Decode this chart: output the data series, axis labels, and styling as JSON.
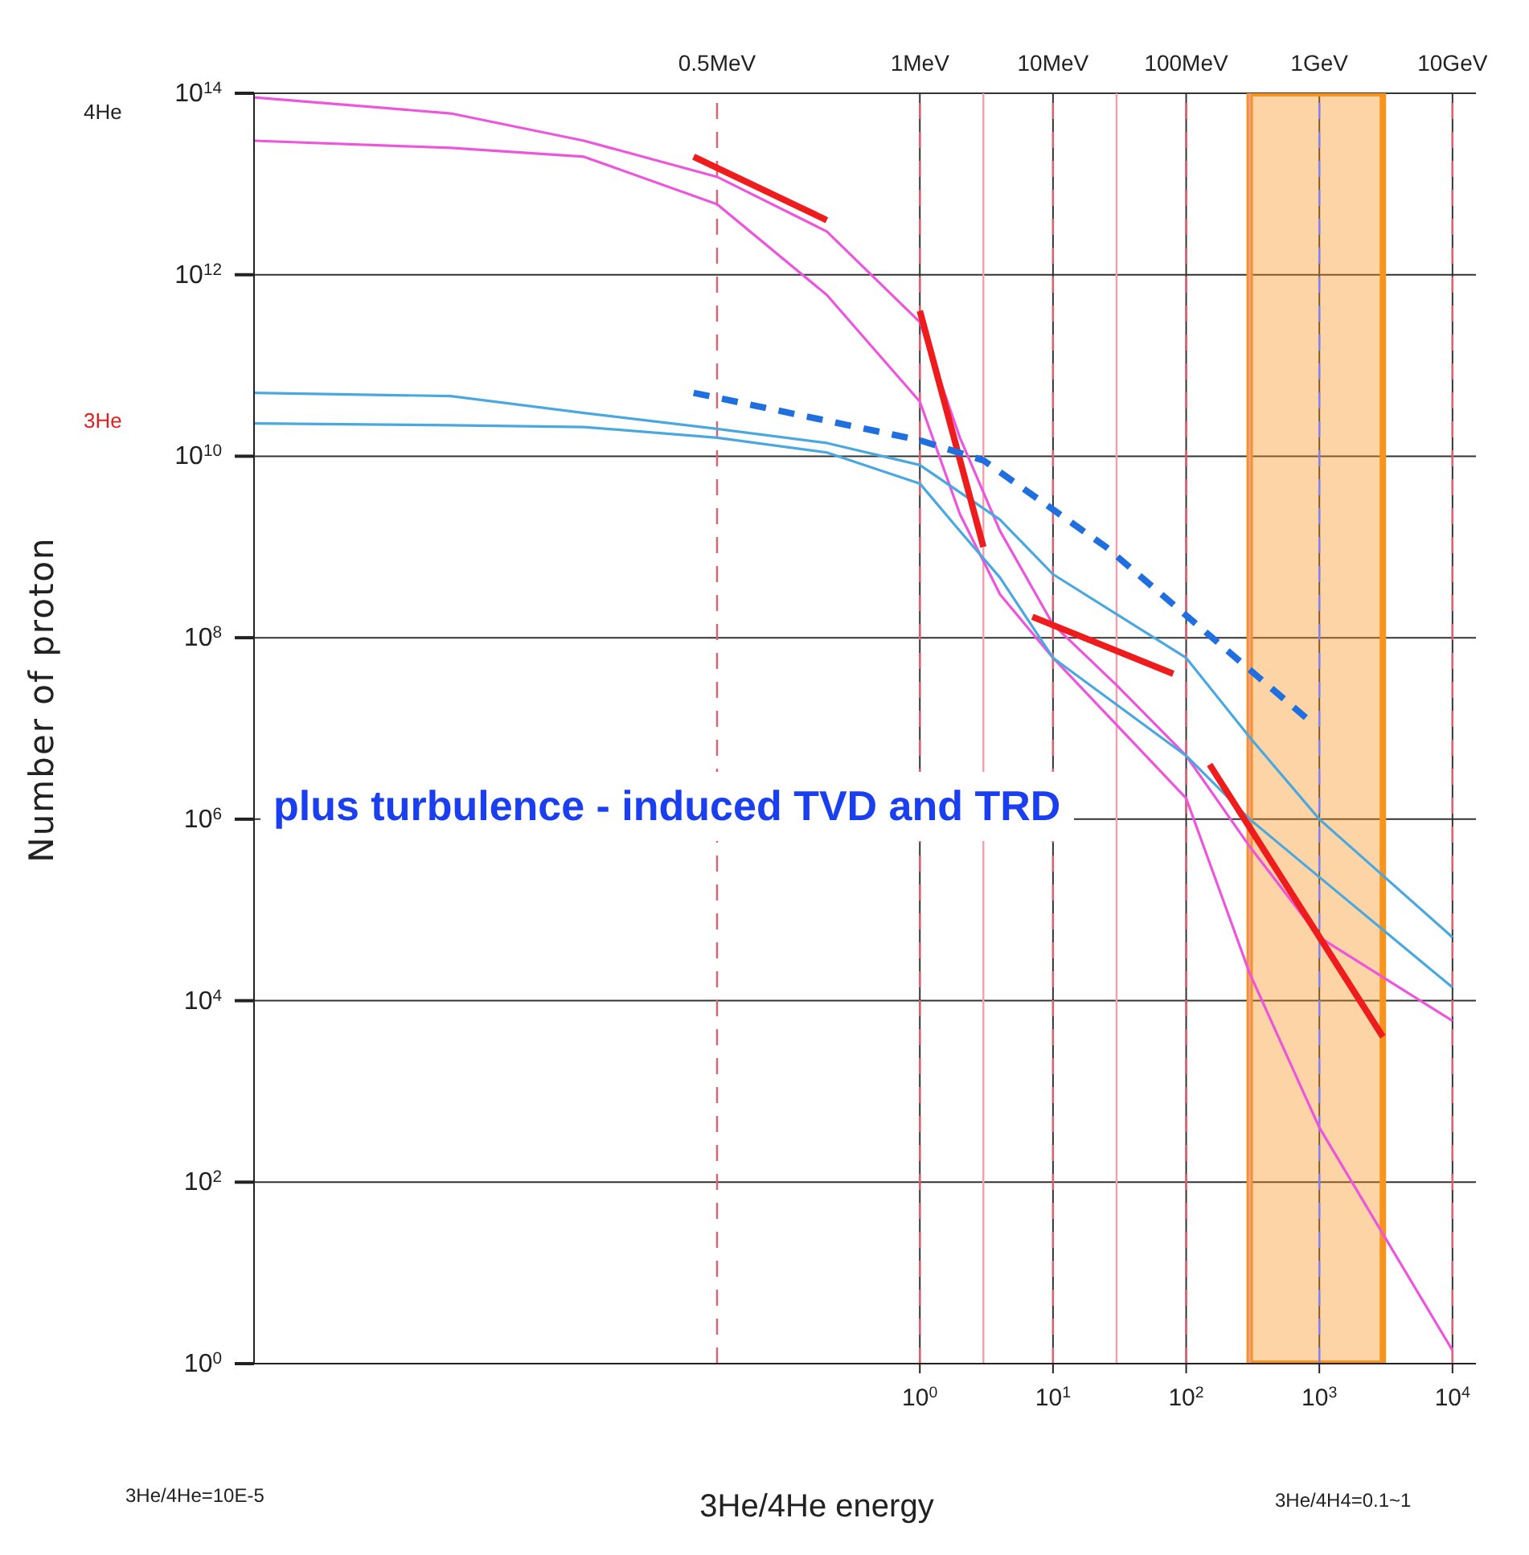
{
  "chart_data": {
    "type": "line",
    "xlabel": "3He/4He energy",
    "ylabel": "Number of proton",
    "log": "xy",
    "grid": true,
    "marker": "none",
    "xlim": [
      1e-05,
      15000
    ],
    "xticks": [
      {
        "value": 1,
        "label": "10$^{0}$"
      },
      {
        "value": 10,
        "label": "10$^{1}$"
      },
      {
        "value": 100,
        "label": "10$^{2}$"
      },
      {
        "value": 1000,
        "label": "10$^{3}$"
      },
      {
        "value": 10000,
        "label": "10$^{4}$"
      }
    ],
    "ylim": [
      1,
      100000000000000
    ],
    "yticks": [
      {
        "value": 1,
        "label": "10$^{0}$"
      },
      {
        "value": 100,
        "label": "10$^{2}$"
      },
      {
        "value": 10000,
        "label": "10$^{4}$"
      },
      {
        "value": 1000000,
        "label": "10$^{6}$"
      },
      {
        "value": 100000000,
        "label": "10$^{8}$"
      },
      {
        "value": 10000000000,
        "label": "10$^{10}$"
      },
      {
        "value": 1000000000000,
        "label": "10$^{12}$"
      },
      {
        "value": 100000000000000,
        "label": "10$^{14}$"
      }
    ],
    "series": [
      {
        "color": "#ee55dd",
        "x": [
          1e-05,
          0.0003,
          0.003,
          0.03,
          0.2,
          1,
          2,
          4,
          10,
          30,
          100,
          300,
          1000,
          10000
        ],
        "values": [
          90000000000000,
          60000000000000,
          30000000000000,
          12000000000000,
          3000000000000,
          300000000000,
          16000000000,
          1500000000,
          140000000,
          30000000,
          5000000,
          500000,
          50000,
          6000
        ]
      },
      {
        "color": "#ee55dd",
        "x": [
          1e-05,
          0.0003,
          0.003,
          0.03,
          0.2,
          1,
          2,
          4,
          10,
          100,
          300,
          1000,
          10000
        ],
        "values": [
          30000000000000,
          25000000000000,
          20000000000000,
          6000000000000,
          600000000000,
          40000000000,
          2300000000,
          300000000,
          60000000,
          1700000,
          20000,
          400,
          1.4
        ]
      },
      {
        "color": "#4aa8e0",
        "x": [
          1e-05,
          0.0003,
          0.003,
          0.03,
          0.2,
          1,
          2,
          4,
          10,
          100,
          300,
          1000,
          10000
        ],
        "values": [
          50000000000,
          46000000000,
          30000000000,
          20000000000,
          14000000000,
          8000000000,
          4000000000,
          2000000000,
          500000000,
          60000000,
          8000000,
          1000000,
          50000
        ]
      },
      {
        "color": "#4aa8e0",
        "x": [
          1e-05,
          0.0003,
          0.003,
          0.03,
          0.2,
          1,
          2,
          4,
          10,
          100,
          300,
          1000,
          10000
        ],
        "values": [
          23000000000,
          22000000000,
          21000000000,
          16000000000,
          11000000000,
          5000000000,
          1500000000,
          460000000,
          60000000,
          5000000,
          1000000,
          230000,
          14000
        ]
      },
      {
        "color": "#ee1c1c",
        "x": [
          0.02,
          0.2
        ],
        "values": [
          20000000000000,
          4000000000000
        ]
      },
      {
        "color": "#ee1c1c",
        "x": [
          1,
          3
        ],
        "values": [
          400000000000,
          1000000000
        ]
      },
      {
        "color": "#ee1c1c",
        "x": [
          7,
          80
        ],
        "values": [
          170000000,
          40000000
        ]
      },
      {
        "color": "#ee1c1c",
        "x": [
          150,
          3000
        ],
        "values": [
          4000000,
          4000
        ]
      },
      {
        "color": "#1f6fe0",
        "line_style": "dashed",
        "x": [
          0.02,
          1,
          3,
          25,
          800
        ],
        "values": [
          50000000000,
          15000000000,
          9000000000,
          1000000000,
          13000000
        ]
      }
    ],
    "ref_lines": [
      {
        "axis": "x",
        "value": 0.03,
        "label": "0.5MeV",
        "color": "#e06070",
        "line_style": "dashed"
      },
      {
        "axis": "x",
        "value": 1,
        "label": "1MeV",
        "color": "#e06070",
        "line_style": "dashed"
      },
      {
        "axis": "x",
        "value": 3,
        "color": "#f0a0a8",
        "line_style": "solid"
      },
      {
        "axis": "x",
        "value": 10,
        "label": "10MeV",
        "color": "#e06070",
        "line_style": "dashed"
      },
      {
        "axis": "x",
        "value": 30,
        "color": "#f0a0a8",
        "line_style": "solid"
      },
      {
        "axis": "x",
        "value": 100,
        "label": "100MeV",
        "color": "#e06070",
        "line_style": "dashed"
      },
      {
        "axis": "x",
        "value": 300,
        "color": "#f0a0a8",
        "line_style": "solid"
      },
      {
        "axis": "x",
        "value": 1000,
        "label": "1GeV",
        "color": "#8080f0",
        "line_style": "dashed"
      },
      {
        "axis": "x",
        "value": 10000,
        "label": "10GeV",
        "color": "#e06070",
        "line_style": "dashed"
      }
    ],
    "bands": [
      {
        "axis": "x",
        "from": 300,
        "to": 3000,
        "color": "#f7941d"
      }
    ],
    "annotations": [
      "plus turbulence - induced TVD and TRD",
      "4He",
      "3He",
      "3He/4He=10E-5",
      "3He/4H4=0.1~1"
    ]
  }
}
